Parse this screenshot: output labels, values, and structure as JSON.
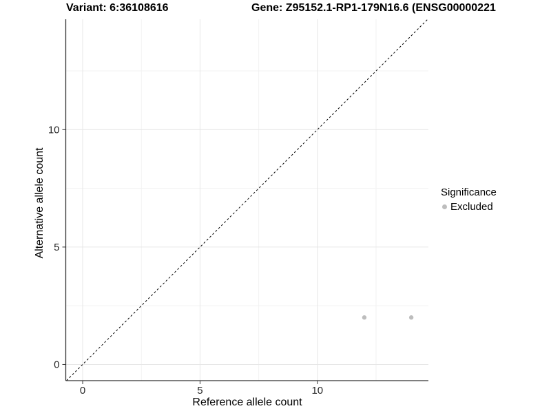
{
  "header": {
    "variant_title": "Variant: 6:36108616",
    "gene_title": "Gene: Z95152.1-RP1-179N16.6 (ENSG00000221"
  },
  "axes": {
    "x": {
      "label": "Reference allele count",
      "tick_labels": [
        "0",
        "5",
        "10"
      ]
    },
    "y": {
      "label": "Alternative allele count",
      "tick_labels": [
        "0",
        "5",
        "10"
      ]
    }
  },
  "legend": {
    "title": "Significance",
    "entries": [
      {
        "label": "Excluded",
        "color": "#bdbdbd"
      }
    ]
  },
  "colors": {
    "grid_major": "#e6e6e6",
    "grid_minor": "#f2f2f2",
    "axis_line": "#333333",
    "tick_mark": "#333333",
    "tick_label": "#262626",
    "identity_line": "#000000",
    "point": "#bdbdbd"
  },
  "chart_data": {
    "type": "scatter",
    "title": "Variant: 6:36108616 / Gene: Z95152.1-RP1-179N16.6 (ENSG00000221...)",
    "xlabel": "Reference allele count",
    "ylabel": "Alternative allele count",
    "xlim": [
      -0.72,
      14.73
    ],
    "ylim": [
      -0.69,
      14.7
    ],
    "x_major_ticks": [
      0,
      5,
      10
    ],
    "y_major_ticks": [
      0,
      5,
      10
    ],
    "x_minor_ticks": [
      2.5,
      7.5,
      12.5
    ],
    "y_minor_ticks": [
      2.5,
      7.5,
      12.5
    ],
    "grid": true,
    "legend_position": "right",
    "identity_line": {
      "slope": 1,
      "intercept": 0,
      "style": "dashed"
    },
    "series": [
      {
        "name": "Excluded",
        "color": "#bdbdbd",
        "points": [
          {
            "x": 12,
            "y": 2
          },
          {
            "x": 14,
            "y": 2
          }
        ]
      }
    ]
  }
}
